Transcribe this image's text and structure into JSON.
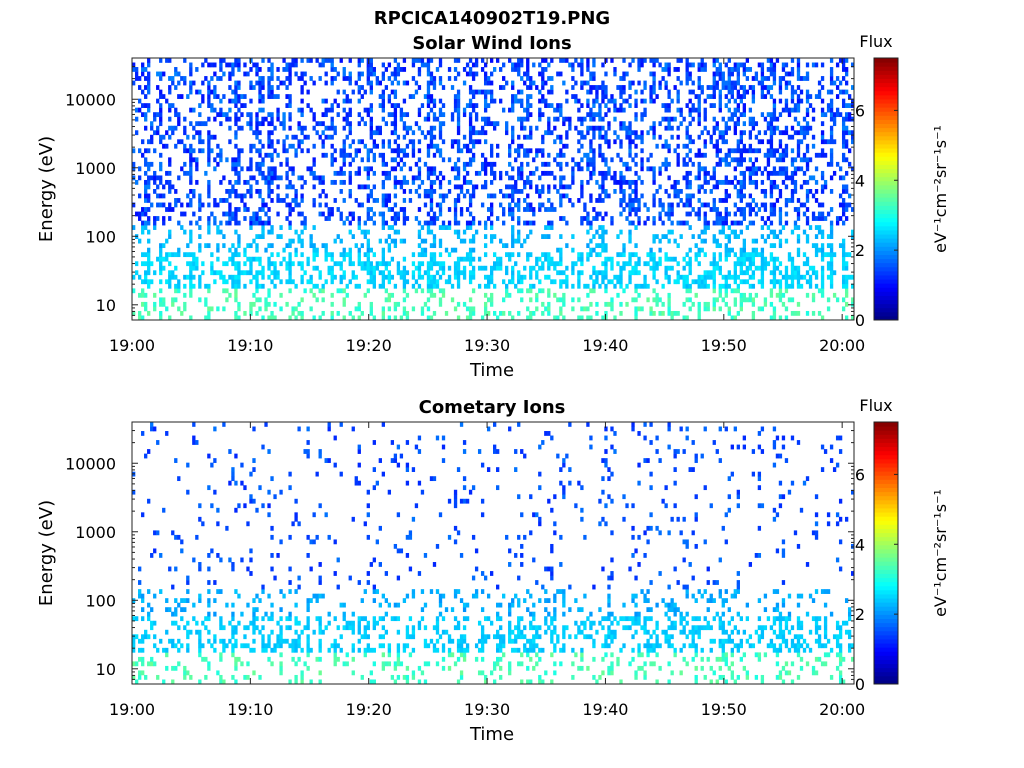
{
  "figure_title": "RPCICA140902T19.PNG",
  "chart_data": [
    {
      "type": "heatmap",
      "title": "Solar Wind Ions",
      "xlabel": "Time",
      "ylabel": "Energy (eV)",
      "x_range": [
        "19:00",
        "20:01"
      ],
      "x_ticks": [
        "19:00",
        "19:10",
        "19:20",
        "19:30",
        "19:40",
        "19:50",
        "20:00"
      ],
      "y_scale": "log",
      "y_range_eV": [
        6,
        40000
      ],
      "y_ticks": [
        "10",
        "100",
        "1000",
        "10000"
      ],
      "colorbar": {
        "label": "Flux",
        "unit": "eV⁻¹cm⁻²sr⁻¹s⁻¹",
        "range": [
          0,
          7.5
        ],
        "ticks": [
          "0",
          "2",
          "4",
          "6"
        ],
        "colormap": "jet"
      },
      "pattern": {
        "bands": [
          {
            "e_min": 6,
            "e_max": 18,
            "occupancy": 0.24,
            "flux": [
              3.0,
              3.6
            ]
          },
          {
            "e_min": 18,
            "e_max": 60,
            "occupancy": 0.4,
            "flux": [
              2.3,
              2.7
            ]
          },
          {
            "e_min": 60,
            "e_max": 150,
            "occupancy": 0.22,
            "flux": [
              2.1,
              2.5
            ]
          },
          {
            "e_min": 150,
            "e_max": 40000,
            "occupancy": 0.34,
            "flux": [
              1.0,
              1.9
            ]
          }
        ]
      }
    },
    {
      "type": "heatmap",
      "title": "Cometary Ions",
      "xlabel": "Time",
      "ylabel": "Energy (eV)",
      "x_range": [
        "19:00",
        "20:01"
      ],
      "x_ticks": [
        "19:00",
        "19:10",
        "19:20",
        "19:30",
        "19:40",
        "19:50",
        "20:00"
      ],
      "y_scale": "log",
      "y_range_eV": [
        6,
        40000
      ],
      "y_ticks": [
        "10",
        "100",
        "1000",
        "10000"
      ],
      "colorbar": {
        "label": "Flux",
        "unit": "eV⁻¹cm⁻²sr⁻¹s⁻¹",
        "range": [
          0,
          7.5
        ],
        "ticks": [
          "0",
          "2",
          "4",
          "6"
        ],
        "colormap": "jet"
      },
      "pattern": {
        "bands": [
          {
            "e_min": 6,
            "e_max": 18,
            "occupancy": 0.2,
            "flux": [
              3.0,
              3.6
            ]
          },
          {
            "e_min": 18,
            "e_max": 60,
            "occupancy": 0.34,
            "flux": [
              2.3,
              2.6
            ]
          },
          {
            "e_min": 60,
            "e_max": 150,
            "occupancy": 0.18,
            "flux": [
              2.0,
              2.4
            ]
          },
          {
            "e_min": 150,
            "e_max": 40000,
            "occupancy": 0.06,
            "flux": [
              1.2,
              1.8
            ]
          }
        ]
      }
    }
  ]
}
